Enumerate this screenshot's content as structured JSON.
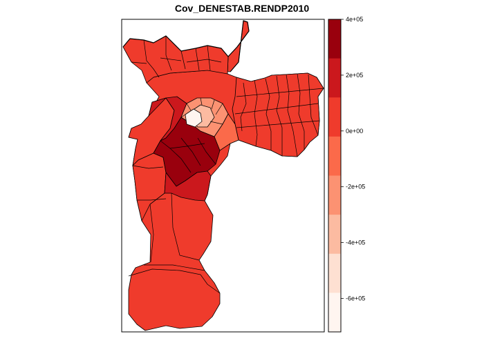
{
  "map": {
    "title": "Cov_DENESTAB.RENDP2010",
    "palette": [
      "#FFF5F0",
      "#FEE0D2",
      "#FCBBA1",
      "#FC9272",
      "#FB6A4A",
      "#EF3B2C",
      "#CB181D",
      "#99000D"
    ]
  },
  "legend": {
    "ticks": [
      "4e+05",
      "2e+05",
      "0e+00",
      "-2e+05",
      "-4e+05",
      "-6e+05"
    ],
    "tick_values": [
      400000,
      200000,
      0,
      -200000,
      -400000,
      -600000
    ],
    "range": [
      -720000,
      400000
    ]
  },
  "regions": [
    {
      "id": "south",
      "class": 5
    },
    {
      "id": "far-south-lower",
      "class": 5
    },
    {
      "id": "southwest-middle",
      "class": 5
    },
    {
      "id": "west",
      "class": 5
    },
    {
      "id": "north",
      "class": 5
    },
    {
      "id": "east",
      "class": 5
    },
    {
      "id": "centre-west",
      "class": 6
    },
    {
      "id": "southwest-core",
      "class": 7
    },
    {
      "id": "south-core",
      "class": 6
    },
    {
      "id": "centre",
      "class": 3
    },
    {
      "id": "centre-core",
      "class": 2
    },
    {
      "id": "centre-innermost",
      "class": 0
    },
    {
      "id": "centre-east",
      "class": 4
    }
  ]
}
